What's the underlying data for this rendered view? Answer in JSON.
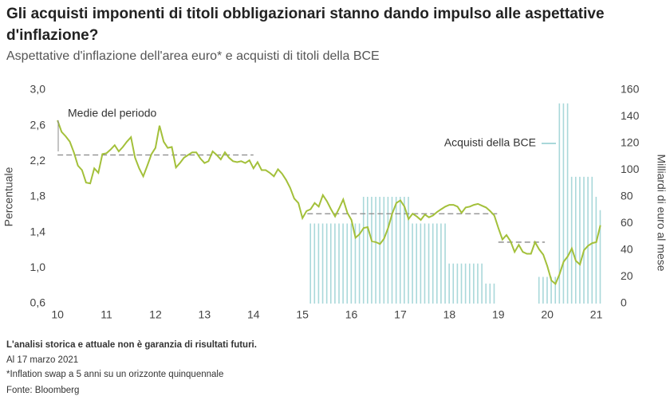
{
  "chart_data": {
    "type": "line",
    "title": "Gli acquisti imponenti di titoli obbligazionari stanno dando impulso alle aspettative d'inflazione?",
    "subtitle": "Aspettative d'inflazione dell'area euro* e acquisti di titoli della BCE",
    "y_label": "Percentuale",
    "y2_label": "Milliardi di euro al mese",
    "xlim": [
      9.9,
      21.3
    ],
    "xticks": [
      10,
      11,
      12,
      13,
      14,
      15,
      16,
      17,
      18,
      19,
      20,
      21
    ],
    "ylim": [
      0.6,
      3.0
    ],
    "yticks": [
      {
        "value": 0.6,
        "label": "0,6"
      },
      {
        "value": 1.0,
        "label": "1,0"
      },
      {
        "value": 1.4,
        "label": "1,4"
      },
      {
        "value": 1.8,
        "label": "1,8"
      },
      {
        "value": 2.2,
        "label": "2,2"
      },
      {
        "value": 2.6,
        "label": "2,6"
      },
      {
        "value": 3.0,
        "label": "3,0"
      }
    ],
    "y2lim": [
      0,
      160
    ],
    "y2ticks": [
      0,
      20,
      40,
      60,
      80,
      100,
      120,
      140,
      160
    ],
    "x": [
      10,
      10.083,
      10.167,
      10.25,
      10.333,
      10.417,
      10.5,
      10.583,
      10.667,
      10.75,
      10.833,
      10.917,
      11,
      11.083,
      11.167,
      11.25,
      11.333,
      11.417,
      11.5,
      11.583,
      11.667,
      11.75,
      11.833,
      11.917,
      12,
      12.083,
      12.167,
      12.25,
      12.333,
      12.417,
      12.5,
      12.583,
      12.667,
      12.75,
      12.833,
      12.917,
      13,
      13.083,
      13.167,
      13.25,
      13.333,
      13.417,
      13.5,
      13.583,
      13.667,
      13.75,
      13.833,
      13.917,
      14,
      14.083,
      14.167,
      14.25,
      14.333,
      14.417,
      14.5,
      14.583,
      14.667,
      14.75,
      14.833,
      14.917,
      15,
      15.083,
      15.167,
      15.25,
      15.333,
      15.417,
      15.5,
      15.583,
      15.667,
      15.75,
      15.833,
      15.917,
      16,
      16.083,
      16.167,
      16.25,
      16.333,
      16.417,
      16.5,
      16.583,
      16.667,
      16.75,
      16.833,
      16.917,
      17,
      17.083,
      17.167,
      17.25,
      17.333,
      17.417,
      17.5,
      17.583,
      17.667,
      17.75,
      17.833,
      17.917,
      18,
      18.083,
      18.167,
      18.25,
      18.333,
      18.417,
      18.5,
      18.583,
      18.667,
      18.75,
      18.833,
      18.917,
      19,
      19.083,
      19.167,
      19.25,
      19.333,
      19.417,
      19.5,
      19.583,
      19.667,
      19.75,
      19.833,
      19.917,
      20,
      20.083,
      20.167,
      20.25,
      20.333,
      20.417,
      20.5,
      20.583,
      20.667,
      20.75,
      20.833,
      20.917,
      21,
      21.083
    ],
    "series": [
      {
        "type": "line",
        "color": "#a3c03a",
        "values": [
          2.66,
          2.53,
          2.48,
          2.42,
          2.3,
          2.15,
          2.1,
          1.96,
          1.95,
          2.12,
          2.07,
          2.28,
          2.29,
          2.33,
          2.38,
          2.31,
          2.36,
          2.42,
          2.47,
          2.24,
          2.12,
          2.03,
          2.15,
          2.28,
          2.35,
          2.6,
          2.42,
          2.35,
          2.36,
          2.13,
          2.18,
          2.24,
          2.27,
          2.3,
          2.3,
          2.23,
          2.18,
          2.2,
          2.31,
          2.27,
          2.22,
          2.3,
          2.24,
          2.2,
          2.19,
          2.2,
          2.18,
          2.21,
          2.12,
          2.19,
          2.1,
          2.1,
          2.07,
          2.03,
          2.11,
          2.06,
          1.99,
          1.9,
          1.78,
          1.73,
          1.56,
          1.64,
          1.66,
          1.73,
          1.69,
          1.82,
          1.75,
          1.66,
          1.58,
          1.67,
          1.77,
          1.62,
          1.54,
          1.34,
          1.38,
          1.45,
          1.46,
          1.3,
          1.29,
          1.27,
          1.33,
          1.45,
          1.61,
          1.73,
          1.76,
          1.69,
          1.55,
          1.61,
          1.58,
          1.54,
          1.6,
          1.57,
          1.59,
          1.63,
          1.66,
          1.69,
          1.71,
          1.71,
          1.69,
          1.62,
          1.68,
          1.69,
          1.71,
          1.72,
          1.7,
          1.68,
          1.64,
          1.59,
          1.45,
          1.32,
          1.37,
          1.3,
          1.18,
          1.26,
          1.18,
          1.16,
          1.16,
          1.29,
          1.21,
          1.15,
          1.02,
          0.86,
          0.82,
          0.93,
          1.07,
          1.13,
          1.22,
          1.08,
          1.04,
          1.2,
          1.25,
          1.28,
          1.29,
          1.48
        ]
      },
      {
        "type": "bar",
        "name": "Acquisti della BCE",
        "axis": "y2",
        "color": "#a9d8da",
        "values": [
          null,
          null,
          null,
          null,
          null,
          null,
          null,
          null,
          null,
          null,
          null,
          null,
          null,
          null,
          null,
          null,
          null,
          null,
          null,
          null,
          null,
          null,
          null,
          null,
          null,
          null,
          null,
          null,
          null,
          null,
          null,
          null,
          null,
          null,
          null,
          null,
          null,
          null,
          null,
          null,
          null,
          null,
          null,
          null,
          null,
          null,
          null,
          null,
          null,
          null,
          null,
          null,
          null,
          null,
          null,
          null,
          null,
          null,
          null,
          null,
          null,
          null,
          60,
          60,
          60,
          60,
          60,
          60,
          60,
          60,
          60,
          60,
          60,
          60,
          60,
          80,
          80,
          80,
          80,
          80,
          80,
          80,
          80,
          80,
          80,
          80,
          80,
          60,
          60,
          60,
          60,
          60,
          60,
          60,
          60,
          60,
          30,
          30,
          30,
          30,
          30,
          30,
          30,
          30,
          30,
          15,
          15,
          15,
          0,
          0,
          0,
          0,
          0,
          0,
          0,
          0,
          0,
          0,
          20,
          20,
          20,
          20,
          20,
          150,
          150,
          150,
          95,
          95,
          95,
          95,
          95,
          95,
          80,
          70
        ]
      }
    ],
    "reference_lines": [
      {
        "x": [
          10,
          14
        ],
        "value": 2.27
      },
      {
        "x": [
          15.1,
          19
        ],
        "value": 1.61
      },
      {
        "x": [
          19,
          19.95
        ],
        "value": 1.29
      }
    ],
    "annotations": [
      "Medie del periodo"
    ],
    "notes": [
      "L'analisi storica e attuale non è garanzia di risultati futuri.",
      "Al 17 marzo 2021",
      "*Inflation swap a 5 anni su un orizzonte quinquennale",
      "Fonte: Bloomberg"
    ]
  }
}
